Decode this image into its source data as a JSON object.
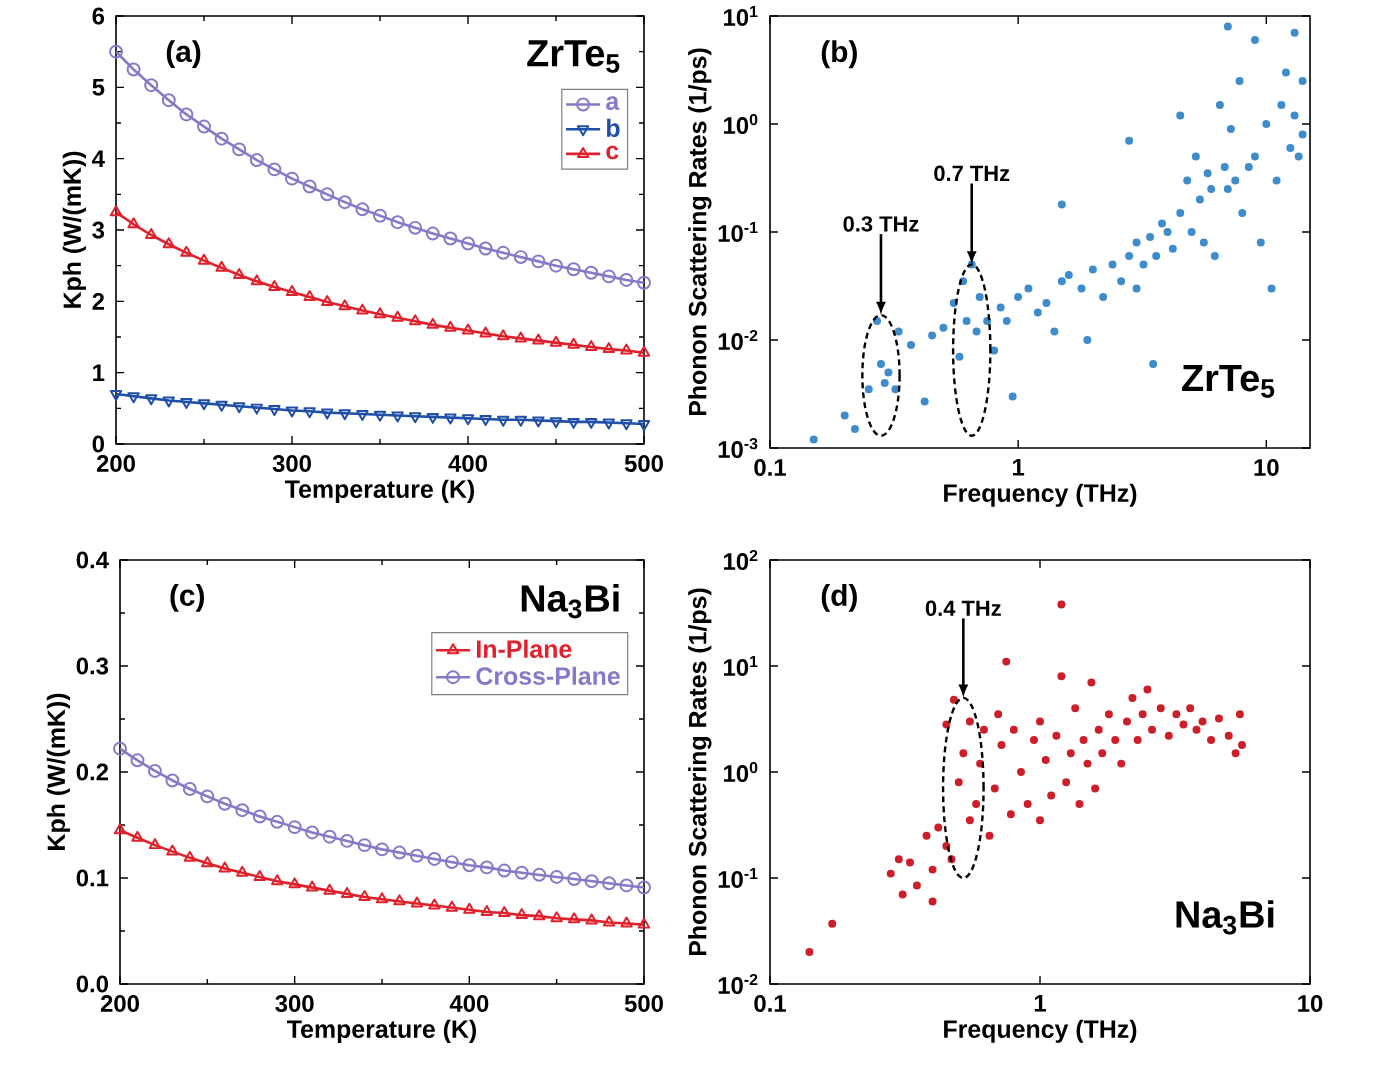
{
  "chart_data": [
    {
      "type": "line",
      "xlabel": "Temperature (K)",
      "ylabel": "Kph (W/(mK))",
      "annotations": [
        "(a)",
        "ZrTe$_{5}$"
      ],
      "xlim": [
        200,
        500
      ],
      "xticks": [
        200,
        300,
        400,
        500
      ],
      "ylim": [
        0,
        6
      ],
      "yticks": [
        0,
        1,
        2,
        3,
        4,
        5,
        6
      ],
      "legend": "top right",
      "grid": false,
      "line_style": "solid",
      "x": [
        200,
        210,
        220,
        230,
        240,
        250,
        260,
        270,
        280,
        290,
        300,
        310,
        320,
        330,
        340,
        350,
        360,
        370,
        380,
        390,
        400,
        410,
        420,
        430,
        440,
        450,
        460,
        470,
        480,
        490,
        500
      ],
      "series": [
        {
          "name": "a",
          "color": "#8878c8",
          "marker": "circle",
          "values": [
            5.5,
            5.25,
            5.03,
            4.82,
            4.62,
            4.45,
            4.28,
            4.13,
            3.98,
            3.85,
            3.72,
            3.61,
            3.5,
            3.39,
            3.29,
            3.2,
            3.11,
            3.03,
            2.95,
            2.88,
            2.81,
            2.74,
            2.68,
            2.62,
            2.56,
            2.5,
            2.45,
            2.4,
            2.35,
            2.3,
            2.26
          ]
        },
        {
          "name": "b",
          "color": "#1f4fa8",
          "marker": "triangle-down",
          "values": [
            0.7,
            0.67,
            0.64,
            0.61,
            0.59,
            0.57,
            0.55,
            0.53,
            0.51,
            0.49,
            0.47,
            0.46,
            0.44,
            0.43,
            0.42,
            0.41,
            0.4,
            0.39,
            0.38,
            0.37,
            0.36,
            0.35,
            0.34,
            0.34,
            0.33,
            0.32,
            0.31,
            0.31,
            0.3,
            0.29,
            0.28
          ]
        },
        {
          "name": "c",
          "color": "#e0202a",
          "marker": "triangle",
          "values": [
            3.25,
            3.08,
            2.93,
            2.8,
            2.68,
            2.57,
            2.47,
            2.37,
            2.28,
            2.2,
            2.13,
            2.06,
            1.99,
            1.93,
            1.87,
            1.82,
            1.77,
            1.72,
            1.67,
            1.63,
            1.59,
            1.55,
            1.51,
            1.48,
            1.45,
            1.42,
            1.39,
            1.36,
            1.33,
            1.31,
            1.28
          ]
        }
      ]
    },
    {
      "type": "scatter",
      "xlabel": "Frequency (THz)",
      "ylabel": "Phonon Scattering Rates (1/ps)",
      "log": "xy",
      "color": "#3f8ccb",
      "grid": false,
      "annotations": [
        "(b)",
        "ZrTe$_{5}$",
        {
          "text": "0.3 THz",
          "x": 0.28,
          "y": 0.017
        },
        {
          "text": "0.7 THz",
          "x": 0.65,
          "y": 0.05
        }
      ],
      "xlim": [
        0.1,
        15
      ],
      "xticks": [
        0.1,
        1,
        10
      ],
      "ylim": [
        0.001,
        10
      ],
      "yticks": [
        {
          "value": 0.001,
          "label": "10$^{-3}$"
        },
        {
          "value": 0.01,
          "label": "10$^{-2}$"
        },
        {
          "value": 0.1,
          "label": "10$^{-1}$"
        },
        {
          "value": 1,
          "label": "10$^{0}$"
        },
        {
          "value": 10,
          "label": "10$^{1}$"
        }
      ],
      "x": [
        0.15,
        0.2,
        0.22,
        0.25,
        0.27,
        0.28,
        0.29,
        0.3,
        0.32,
        0.33,
        0.37,
        0.42,
        0.45,
        0.5,
        0.55,
        0.58,
        0.6,
        0.62,
        0.65,
        0.68,
        0.7,
        0.75,
        0.8,
        0.85,
        0.9,
        0.95,
        1.0,
        1.1,
        1.2,
        1.3,
        1.4,
        1.5,
        1.5,
        1.6,
        1.8,
        1.9,
        2.0,
        2.2,
        2.4,
        2.6,
        2.8,
        2.8,
        3.0,
        3.0,
        3.2,
        3.4,
        3.5,
        3.6,
        3.8,
        4.0,
        4.2,
        4.5,
        4.5,
        4.8,
        5.0,
        5.2,
        5.4,
        5.6,
        5.8,
        6.0,
        6.2,
        6.5,
        6.8,
        7.0,
        7.0,
        7.2,
        7.5,
        7.8,
        8.0,
        8.5,
        9.0,
        9.0,
        9.5,
        10,
        10.5,
        11,
        11.5,
        12,
        12.5,
        13,
        13,
        13.5,
        14,
        14
      ],
      "values": [
        0.0012,
        0.002,
        0.0015,
        0.0035,
        0.015,
        0.006,
        0.004,
        0.005,
        0.0035,
        0.012,
        0.009,
        0.0027,
        0.011,
        0.013,
        0.022,
        0.007,
        0.035,
        0.015,
        0.05,
        0.012,
        0.025,
        0.015,
        0.008,
        0.02,
        0.015,
        0.003,
        0.025,
        0.03,
        0.018,
        0.022,
        0.012,
        0.035,
        0.18,
        0.04,
        0.03,
        0.01,
        0.045,
        0.025,
        0.05,
        0.035,
        0.06,
        0.7,
        0.08,
        0.03,
        0.05,
        0.09,
        0.006,
        0.06,
        0.12,
        0.1,
        0.07,
        0.15,
        1.2,
        0.3,
        0.1,
        0.5,
        0.2,
        0.08,
        0.35,
        0.25,
        0.06,
        1.5,
        0.4,
        8,
        0.25,
        0.9,
        0.3,
        2.5,
        0.15,
        0.4,
        6,
        0.5,
        0.08,
        1.0,
        0.03,
        0.3,
        1.5,
        3,
        0.6,
        7,
        1.2,
        0.5,
        2.5,
        0.8
      ]
    },
    {
      "type": "line",
      "xlabel": "Temperature (K)",
      "ylabel": "Kph (W/(mK))",
      "annotations": [
        "(c)",
        "Na$_{3}$Bi"
      ],
      "xlim": [
        200,
        500
      ],
      "xticks": [
        200,
        300,
        400,
        500
      ],
      "ylim": [
        0,
        0.4
      ],
      "yticks": [
        {
          "value": 0,
          "label": "0.0"
        },
        0.1,
        0.2,
        0.3,
        0.4
      ],
      "legend": "top right",
      "grid": false,
      "line_style": "solid",
      "x": [
        200,
        210,
        220,
        230,
        240,
        250,
        260,
        270,
        280,
        290,
        300,
        310,
        320,
        330,
        340,
        350,
        360,
        370,
        380,
        390,
        400,
        410,
        420,
        430,
        440,
        450,
        460,
        470,
        480,
        490,
        500
      ],
      "series": [
        {
          "name": "In-Plane",
          "color": "#e0202a",
          "marker": "triangle",
          "values": [
            0.145,
            0.138,
            0.131,
            0.125,
            0.119,
            0.114,
            0.109,
            0.105,
            0.101,
            0.097,
            0.094,
            0.091,
            0.088,
            0.085,
            0.082,
            0.08,
            0.078,
            0.076,
            0.074,
            0.072,
            0.07,
            0.068,
            0.067,
            0.065,
            0.064,
            0.062,
            0.061,
            0.06,
            0.058,
            0.057,
            0.056
          ]
        },
        {
          "name": "Cross-Plane",
          "color": "#8878c8",
          "marker": "circle",
          "values": [
            0.222,
            0.211,
            0.201,
            0.192,
            0.184,
            0.177,
            0.17,
            0.164,
            0.158,
            0.153,
            0.148,
            0.143,
            0.139,
            0.135,
            0.131,
            0.127,
            0.124,
            0.121,
            0.118,
            0.115,
            0.112,
            0.11,
            0.107,
            0.105,
            0.103,
            0.101,
            0.099,
            0.097,
            0.095,
            0.093,
            0.091
          ]
        }
      ]
    },
    {
      "type": "scatter",
      "xlabel": "Frequency (THz)",
      "ylabel": "Phonon Scattering Rates (1/ps)",
      "log": "xy",
      "color": "#cc1f2a",
      "grid": false,
      "annotations": [
        "(d)",
        "Na$_{3}$Bi",
        {
          "text": "0.4 THz",
          "x": 0.52,
          "y": 5
        }
      ],
      "xlim": [
        0.1,
        10
      ],
      "xticks": [
        0.1,
        1,
        10
      ],
      "ylim": [
        0.01,
        100
      ],
      "yticks": [
        {
          "value": 0.01,
          "label": "10$^{-2}$"
        },
        {
          "value": 0.1,
          "label": "10$^{-1}$"
        },
        {
          "value": 1,
          "label": "10$^{0}$"
        },
        {
          "value": 10,
          "label": "10$^{1}$"
        },
        {
          "value": 100,
          "label": "10$^{2}$"
        }
      ],
      "x": [
        0.14,
        0.17,
        0.28,
        0.3,
        0.31,
        0.33,
        0.35,
        0.38,
        0.4,
        0.4,
        0.42,
        0.45,
        0.45,
        0.47,
        0.48,
        0.5,
        0.52,
        0.55,
        0.55,
        0.58,
        0.6,
        0.62,
        0.65,
        0.68,
        0.7,
        0.72,
        0.75,
        0.78,
        0.8,
        0.85,
        0.9,
        0.95,
        1.0,
        1.0,
        1.05,
        1.1,
        1.15,
        1.2,
        1.2,
        1.25,
        1.3,
        1.35,
        1.4,
        1.45,
        1.5,
        1.55,
        1.6,
        1.65,
        1.7,
        1.8,
        1.9,
        2.0,
        2.1,
        2.2,
        2.3,
        2.4,
        2.5,
        2.6,
        2.8,
        3.0,
        3.2,
        3.4,
        3.6,
        3.8,
        4.0,
        4.3,
        4.6,
        5.0,
        5.3,
        5.5,
        5.6
      ],
      "values": [
        0.02,
        0.037,
        0.11,
        0.15,
        0.07,
        0.14,
        0.085,
        0.25,
        0.06,
        0.12,
        0.3,
        0.2,
        2.8,
        0.15,
        4.8,
        0.8,
        1.5,
        0.35,
        3,
        0.5,
        1.2,
        2.5,
        0.25,
        0.7,
        3.5,
        1.8,
        11,
        0.4,
        2.5,
        1,
        0.5,
        2,
        0.35,
        3,
        1.3,
        0.6,
        2.2,
        38,
        8,
        0.8,
        1.5,
        4,
        0.5,
        2,
        1.2,
        7,
        0.7,
        2.5,
        1.5,
        3.5,
        2,
        1.2,
        3,
        5,
        2,
        3.5,
        6,
        2.5,
        4,
        2.2,
        3.5,
        2.8,
        4,
        2.5,
        3,
        2,
        3.2,
        2.2,
        1.5,
        3.5,
        1.8
      ]
    }
  ]
}
